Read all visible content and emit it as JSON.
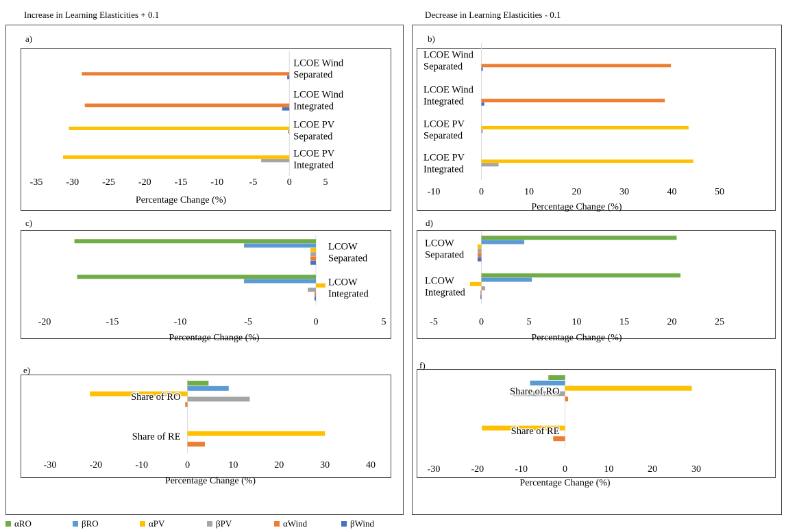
{
  "headings": {
    "left": "Increase in Learning Elasticities + 0.1",
    "right": "Decrease in Learning Elasticities - 0.1"
  },
  "colors": {
    "αRO": "#70ad47",
    "βRO": "#5b9bd5",
    "αPV": "#ffc000",
    "βPV": "#a5a5a5",
    "αWind": "#ed7d31",
    "βWind": "#4472c4"
  },
  "legend": [
    "αRO",
    "βRO",
    "αPV",
    "βPV",
    "αWind",
    "βWind"
  ],
  "chart_data": [
    {
      "id": "a",
      "panel_label": "a)",
      "type": "bar",
      "orientation": "horizontal",
      "xlabel": "Percentage Change (%)",
      "xlim": [
        -35,
        5
      ],
      "xticks": [
        "-35",
        "-30",
        "-25",
        "-20",
        "-15",
        "-10",
        "-5",
        "0",
        "5"
      ],
      "categories": [
        "LCOE Wind Separated",
        "LCOE Wind Integrated",
        "LCOE PV Separated",
        "LCOE PV Integrated"
      ],
      "category_lines": [
        [
          "LCOE Wind",
          "Separated"
        ],
        [
          "LCOE Wind",
          "Integrated"
        ],
        [
          "LCOE PV",
          "Separated"
        ],
        [
          "LCOE PV",
          "Integrated"
        ]
      ],
      "series": [
        {
          "name": "αRO",
          "values": [
            0,
            0,
            0,
            0
          ]
        },
        {
          "name": "βRO",
          "values": [
            0,
            0,
            0,
            0
          ]
        },
        {
          "name": "αPV",
          "values": [
            0,
            0,
            -30.5,
            -31.3
          ]
        },
        {
          "name": "βPV",
          "values": [
            0,
            0,
            -0.2,
            -3.9
          ]
        },
        {
          "name": "αWind",
          "values": [
            -28.7,
            -28.3,
            0,
            0
          ]
        },
        {
          "name": "βWind",
          "values": [
            -0.3,
            -1.0,
            0,
            0
          ]
        }
      ]
    },
    {
      "id": "b",
      "panel_label": "b)",
      "type": "bar",
      "orientation": "horizontal",
      "xlabel": "Percentage Change (%)",
      "xlim": [
        -10,
        50
      ],
      "xticks": [
        "-10",
        "0",
        "10",
        "20",
        "30",
        "40",
        "50"
      ],
      "categories": [
        "LCOE Wind Separated",
        "LCOE Wind Integrated",
        "LCOE PV Separated",
        "LCOE PV Integrated"
      ],
      "category_lines": [
        [
          "LCOE Wind",
          "Separated"
        ],
        [
          "LCOE Wind",
          "Integrated"
        ],
        [
          "LCOE PV",
          "Separated"
        ],
        [
          "LCOE PV",
          "Integrated"
        ]
      ],
      "series": [
        {
          "name": "αRO",
          "values": [
            0,
            0,
            0,
            0
          ]
        },
        {
          "name": "βRO",
          "values": [
            0,
            0,
            0,
            0
          ]
        },
        {
          "name": "αPV",
          "values": [
            0,
            0,
            43.5,
            44.5
          ]
        },
        {
          "name": "βPV",
          "values": [
            0,
            0,
            0.3,
            3.6
          ]
        },
        {
          "name": "αWind",
          "values": [
            39.8,
            38.5,
            0,
            0
          ]
        },
        {
          "name": "βWind",
          "values": [
            0.3,
            0.6,
            0,
            0
          ]
        }
      ]
    },
    {
      "id": "c",
      "panel_label": "c)",
      "type": "bar",
      "orientation": "horizontal",
      "xlabel": "Percentage Change (%)",
      "xlim": [
        -20,
        5
      ],
      "xticks": [
        "-20",
        "-15",
        "-10",
        "-5",
        "0",
        "5"
      ],
      "categories": [
        "LCOW Separated",
        "LCOW Integrated"
      ],
      "category_lines": [
        [
          "LCOW",
          "Separated"
        ],
        [
          "LCOW",
          "Integrated"
        ]
      ],
      "series": [
        {
          "name": "αRO",
          "values": [
            -17.8,
            -17.6
          ]
        },
        {
          "name": "βRO",
          "values": [
            -5.3,
            -5.3
          ]
        },
        {
          "name": "αPV",
          "values": [
            -0.4,
            0.7
          ]
        },
        {
          "name": "βPV",
          "values": [
            -0.4,
            -0.6
          ]
        },
        {
          "name": "αWind",
          "values": [
            -0.4,
            -0.1
          ]
        },
        {
          "name": "βWind",
          "values": [
            -0.4,
            -0.1
          ]
        }
      ]
    },
    {
      "id": "d",
      "panel_label": "d)",
      "type": "bar",
      "orientation": "horizontal",
      "xlabel": "Percentage Change (%)",
      "xlim": [
        -5,
        25
      ],
      "xticks": [
        "-5",
        "0",
        "5",
        "10",
        "15",
        "20",
        "25"
      ],
      "categories": [
        "LCOW Separated",
        "LCOW Integrated"
      ],
      "category_lines": [
        [
          "LCOW",
          "Separated"
        ],
        [
          "LCOW",
          "Integrated"
        ]
      ],
      "series": [
        {
          "name": "αRO",
          "values": [
            20.5,
            20.9
          ]
        },
        {
          "name": "βRO",
          "values": [
            4.5,
            5.3
          ]
        },
        {
          "name": "αPV",
          "values": [
            -0.4,
            -1.2
          ]
        },
        {
          "name": "βPV",
          "values": [
            -0.4,
            0.4
          ]
        },
        {
          "name": "αWind",
          "values": [
            -0.4,
            -0.1
          ]
        },
        {
          "name": "βWind",
          "values": [
            -0.4,
            -0.1
          ]
        }
      ]
    },
    {
      "id": "e",
      "panel_label": "e)",
      "type": "bar",
      "orientation": "horizontal",
      "xlabel": "Percentage Change (%)",
      "xlim": [
        -30,
        40
      ],
      "xticks": [
        "-30",
        "-20",
        "-10",
        "0",
        "10",
        "20",
        "30",
        "40"
      ],
      "categories": [
        "Share of RO",
        "Share of RE"
      ],
      "category_lines": [
        [
          "Share of RO"
        ],
        [
          "Share of RE"
        ]
      ],
      "series": [
        {
          "name": "αRO",
          "values": [
            4.6,
            0
          ]
        },
        {
          "name": "βRO",
          "values": [
            9.0,
            0
          ]
        },
        {
          "name": "αPV",
          "values": [
            -21.3,
            30.0
          ]
        },
        {
          "name": "βPV",
          "values": [
            13.6,
            0
          ]
        },
        {
          "name": "αWind",
          "values": [
            -0.5,
            3.8
          ]
        },
        {
          "name": "βWind",
          "values": [
            0,
            0
          ]
        }
      ]
    },
    {
      "id": "f",
      "panel_label": "f)",
      "type": "bar",
      "orientation": "horizontal",
      "xlabel": "Percentage Change (%)",
      "xlim": [
        -30,
        30
      ],
      "xticks": [
        "-30",
        "-20",
        "-10",
        "0",
        "10",
        "20",
        "30"
      ],
      "categories": [
        "Share of RO",
        "Share of RE"
      ],
      "category_lines": [
        [
          "Share of RO"
        ],
        [
          "Share of RE"
        ]
      ],
      "series": [
        {
          "name": "αRO",
          "values": [
            -3.8,
            0
          ]
        },
        {
          "name": "βRO",
          "values": [
            -8.0,
            0
          ]
        },
        {
          "name": "αPV",
          "values": [
            29.0,
            -19.0
          ]
        },
        {
          "name": "βPV",
          "values": [
            -11.8,
            0
          ]
        },
        {
          "name": "αWind",
          "values": [
            0.7,
            -2.7
          ]
        },
        {
          "name": "βWind",
          "values": [
            0,
            0
          ]
        }
      ]
    }
  ]
}
